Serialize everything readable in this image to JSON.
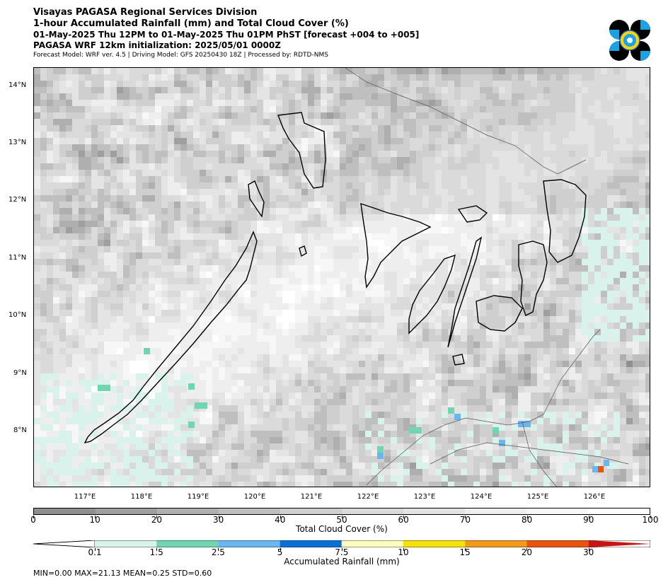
{
  "header": {
    "line1": "Visayas PAGASA Regional Services Division",
    "line2": "1-hour Accumulated Rainfall (mm) and Total Cloud Cover (%)",
    "line3": "01-May-2025 Thu 12PM to 01-May-2025 Thu 01PM PhST [forecast +004 to +005]",
    "line4": "PAGASA WRF 12km initialization: 2025/05/01 0000Z",
    "line5": "Forecast Model: WRF ver. 4.5 | Driving Model: GFS 20250430 18Z | Processed by: RDTD-NMS"
  },
  "map": {
    "lat_labels": [
      "14°N",
      "13°N",
      "12°N",
      "11°N",
      "10°N",
      "9°N",
      "8°N"
    ],
    "lon_labels": [
      "117°E",
      "118°E",
      "119°E",
      "120°E",
      "121°E",
      "122°E",
      "123°E",
      "124°E",
      "125°E",
      "126°E"
    ]
  },
  "cloud_bar": {
    "label": "Total Cloud Cover (%)",
    "ticks": [
      "0",
      "10",
      "20",
      "30",
      "40",
      "50",
      "60",
      "70",
      "80",
      "90",
      "100"
    ],
    "colors": [
      "#8f8f8f",
      "#9f9f9f",
      "#afafaf",
      "#bfbfbf",
      "#cfcfcf",
      "#dadada",
      "#e4e4e4",
      "#eeeeee",
      "#f7f7f7",
      "#ffffff"
    ]
  },
  "rain_bar": {
    "label": "Accumulated Rainfall (mm)",
    "ticks": [
      "0.1",
      "1.5",
      "2.5",
      "5",
      "7.5",
      "10",
      "15",
      "20",
      "30"
    ],
    "colors": [
      "#d9f3ec",
      "#6fd6b0",
      "#6ab6f0",
      "#0a6fd6",
      "#fdfbc0",
      "#f6e10a",
      "#f29a1c",
      "#e9540f",
      "#c81414"
    ]
  },
  "stats": {
    "text": "MIN=0.00   MAX=21.13   MEAN=0.25   STD=0.60"
  }
}
